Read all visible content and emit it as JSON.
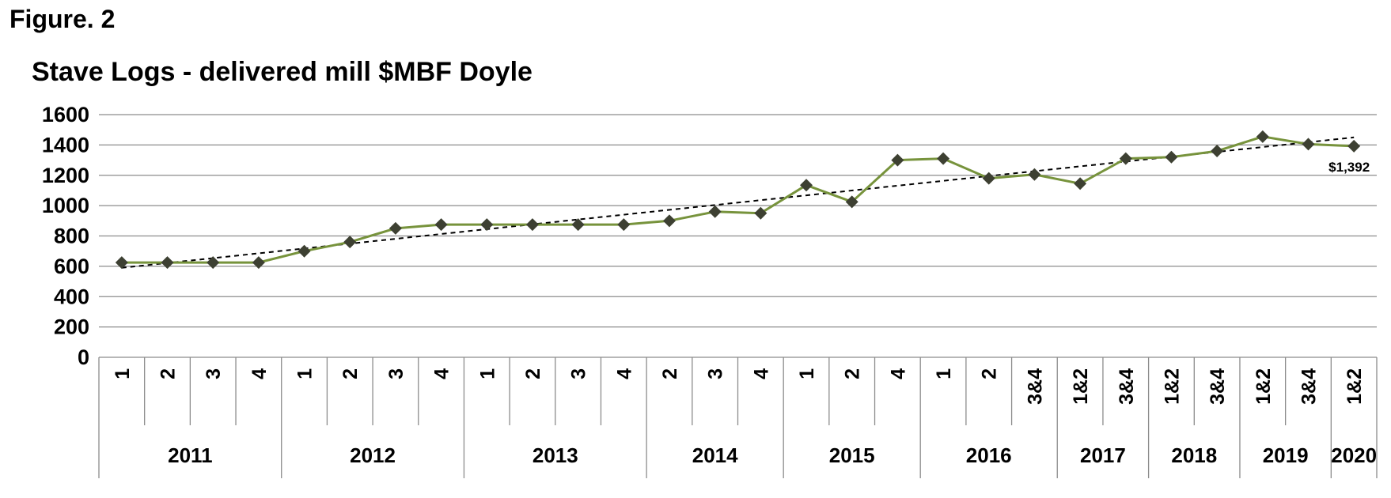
{
  "figure_label": "Figure. 2",
  "chart_data": {
    "type": "line",
    "title": "Stave Logs - delivered mill $MBF Doyle",
    "xlabel": "",
    "ylabel": "",
    "ylim": [
      0,
      1600
    ],
    "yticks": [
      "0",
      "200",
      "400",
      "600",
      "800",
      "1000",
      "1200",
      "1400",
      "1600"
    ],
    "grid": true,
    "categories": [
      "1",
      "2",
      "3",
      "4",
      "1",
      "2",
      "3",
      "4",
      "1",
      "2",
      "3",
      "4",
      "2",
      "3",
      "4",
      "1",
      "2",
      "4",
      "1",
      "2",
      "3&4",
      "1&2",
      "3&4",
      "1&2",
      "3&4",
      "1&2",
      "3&4",
      "1&2"
    ],
    "year_groups": [
      {
        "year": "2011",
        "count": 4
      },
      {
        "year": "2012",
        "count": 4
      },
      {
        "year": "2013",
        "count": 4
      },
      {
        "year": "2014",
        "count": 3
      },
      {
        "year": "2015",
        "count": 3
      },
      {
        "year": "2016",
        "count": 3
      },
      {
        "year": "2017",
        "count": 2
      },
      {
        "year": "2018",
        "count": 2
      },
      {
        "year": "2019",
        "count": 2
      },
      {
        "year": "2020",
        "count": 1
      }
    ],
    "series": [
      {
        "values": [
          625,
          625,
          625,
          625,
          700,
          760,
          850,
          875,
          875,
          875,
          875,
          875,
          900,
          960,
          950,
          1135,
          1025,
          1300,
          1310,
          1180,
          1205,
          1145,
          1310,
          1320,
          1360,
          1455,
          1405,
          1392
        ],
        "color": "#77933c",
        "marker_color": "#3d4032"
      }
    ],
    "trendline": {
      "type": "linear",
      "start": 590,
      "end": 1450,
      "color": "#000000"
    },
    "annotations": [
      {
        "text": "$1,392",
        "index": 27
      }
    ]
  }
}
